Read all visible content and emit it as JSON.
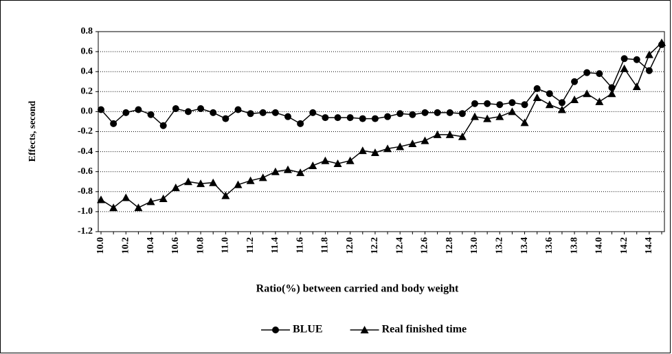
{
  "chart_data": {
    "type": "line",
    "y_label": "Effects, second",
    "x_label": "Ratio(%) between carried and body weight",
    "categories": [
      "10.0",
      null,
      "10.2",
      null,
      "10.4",
      null,
      "10.6",
      null,
      "10.8",
      null,
      "11.0",
      null,
      "11.2",
      null,
      "11.4",
      null,
      "11.6",
      null,
      "11.8",
      null,
      "12.0",
      null,
      "12.2",
      null,
      "12.4",
      null,
      "12.6",
      null,
      "12.8",
      null,
      "13.0",
      null,
      "13.2",
      null,
      "13.4",
      null,
      "13.6",
      null,
      "13.8",
      null,
      "14.0",
      null,
      "14.2",
      null,
      "14.4",
      null
    ],
    "series": [
      {
        "name": "BLUE",
        "color": "#000000",
        "marker": "circle",
        "values": [
          0.02,
          -0.12,
          -0.01,
          0.02,
          -0.03,
          -0.14,
          0.03,
          0.0,
          0.03,
          -0.01,
          -0.07,
          0.02,
          -0.02,
          -0.01,
          -0.01,
          -0.05,
          -0.12,
          -0.01,
          -0.06,
          -0.06,
          -0.06,
          -0.07,
          -0.07,
          -0.05,
          -0.02,
          -0.03,
          -0.01,
          -0.01,
          -0.01,
          -0.02,
          0.08,
          0.08,
          0.07,
          0.09,
          0.07,
          0.23,
          0.18,
          0.09,
          0.3,
          0.39,
          0.38,
          0.24,
          0.53,
          0.52,
          0.41,
          0.67
        ]
      },
      {
        "name": "Real finished time",
        "color": "#000000",
        "marker": "triangle",
        "values": [
          -0.88,
          -0.96,
          -0.86,
          -0.96,
          -0.9,
          -0.87,
          -0.76,
          -0.7,
          -0.72,
          -0.71,
          -0.84,
          -0.73,
          -0.69,
          -0.66,
          -0.6,
          -0.58,
          -0.61,
          -0.54,
          -0.49,
          -0.52,
          -0.49,
          -0.39,
          -0.41,
          -0.37,
          -0.35,
          -0.32,
          -0.29,
          -0.23,
          -0.23,
          -0.25,
          -0.05,
          -0.07,
          -0.05,
          0.0,
          -0.11,
          0.14,
          0.07,
          0.02,
          0.12,
          0.18,
          0.1,
          0.18,
          0.43,
          0.25,
          0.57,
          0.69
        ]
      }
    ],
    "ylim": [
      -1.2,
      0.8
    ],
    "yticks": [
      -1.2,
      {
        "value": -1,
        "label": "-1.0"
      },
      -0.8,
      -0.6,
      -0.4,
      -0.2,
      {
        "value": 0,
        "label": "0.0"
      },
      0.2,
      0.4,
      0.6,
      0.8
    ],
    "grid": true,
    "legend": "bottom"
  }
}
